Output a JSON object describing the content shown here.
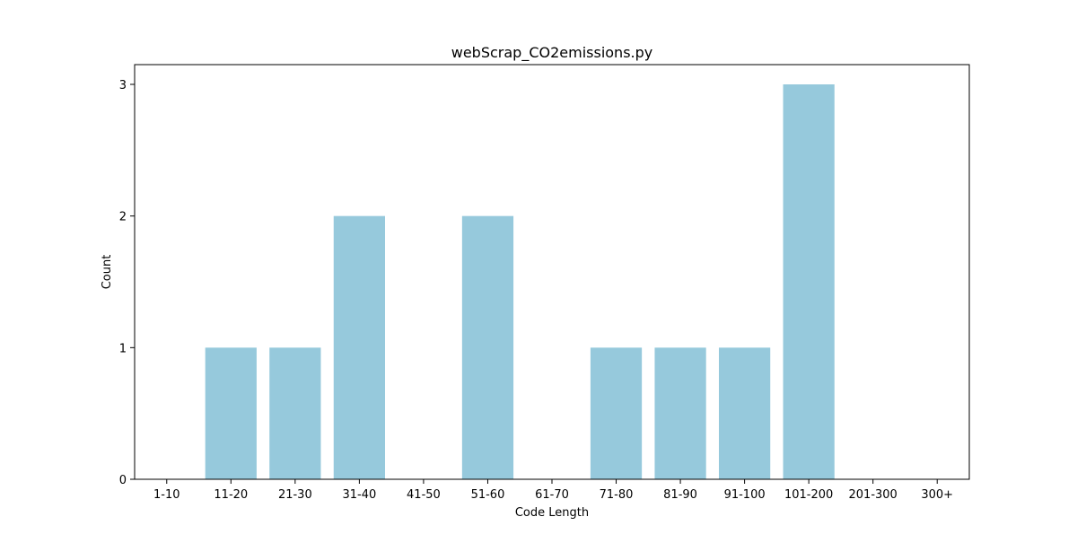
{
  "chart_data": {
    "type": "bar",
    "title": "webScrap_CO2emissions.py",
    "xlabel": "Code Length",
    "ylabel": "Count",
    "categories": [
      "1-10",
      "11-20",
      "21-30",
      "31-40",
      "41-50",
      "51-60",
      "61-70",
      "71-80",
      "81-90",
      "91-100",
      "101-200",
      "201-300",
      "300+"
    ],
    "values": [
      0,
      1,
      1,
      2,
      0,
      2,
      0,
      1,
      1,
      1,
      3,
      0,
      0
    ],
    "ylim": [
      0,
      3.15
    ],
    "yticks": [
      "0",
      "1",
      "2",
      "3"
    ],
    "grid": false,
    "bar_color": "#96c9dc"
  }
}
